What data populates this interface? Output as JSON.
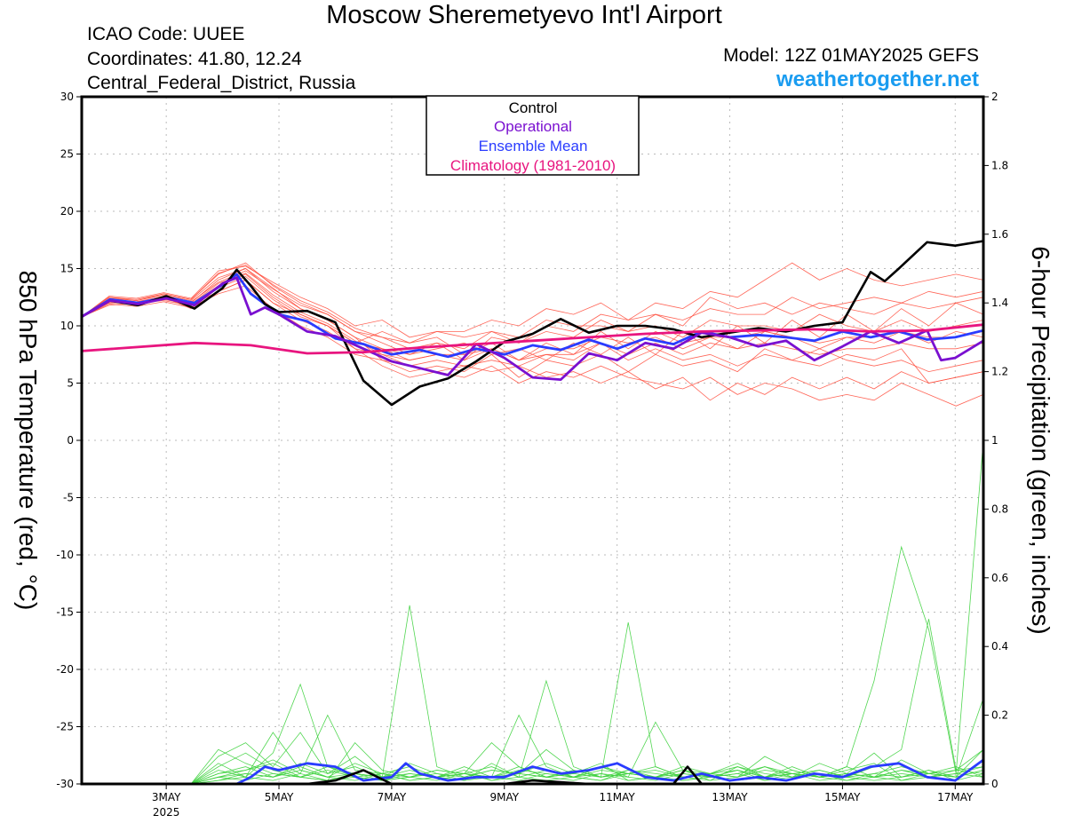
{
  "header": {
    "title": "Moscow Sheremetyevo Int'l Airport",
    "icao": "ICAO Code: UUEE",
    "coords": "Coordinates: 41.80, 12.24",
    "region": "Central_Federal_District, Russia",
    "model": "Model: 12Z 01MAY2025 GEFS",
    "site": "weathertogether.net"
  },
  "colors": {
    "control": "#000000",
    "operational": "#7a10d0",
    "mean": "#2a3cff",
    "climatology": "#e8157f",
    "members_temp": "#ff4a3a",
    "members_precip": "#3ed23e",
    "grid": "#bbbbbb"
  },
  "chart_data": {
    "type": "line",
    "x_unit": "days after 12Z 01MAY2025",
    "xlim": [
      0,
      16
    ],
    "x_ticks": [
      {
        "x": 1.5,
        "label": "3MAY",
        "sublabel": "2025"
      },
      {
        "x": 3.5,
        "label": "5MAY",
        "sublabel": ""
      },
      {
        "x": 5.5,
        "label": "7MAY",
        "sublabel": ""
      },
      {
        "x": 7.5,
        "label": "9MAY",
        "sublabel": ""
      },
      {
        "x": 9.5,
        "label": "11MAY",
        "sublabel": ""
      },
      {
        "x": 11.5,
        "label": "13MAY",
        "sublabel": ""
      },
      {
        "x": 13.5,
        "label": "15MAY",
        "sublabel": ""
      },
      {
        "x": 15.5,
        "label": "17MAY",
        "sublabel": ""
      }
    ],
    "y_left": {
      "label": "850 hPa Temperature (red, °C)",
      "ylim": [
        -30,
        30
      ],
      "ticks": [
        "30",
        "25",
        "20",
        "15",
        "10",
        "5",
        "0",
        "-5",
        "-10",
        "-15",
        "-20",
        "-25",
        "-30"
      ]
    },
    "y_right": {
      "label": "6-hour Precipitation (green, inches)",
      "ylim": [
        0,
        2
      ],
      "ticks": [
        "2",
        "1.8",
        "1.6",
        "1.4",
        "1.2",
        "1",
        "0.8",
        "0.6",
        "0.4",
        "0.2",
        "0"
      ]
    },
    "grid": true,
    "legend": {
      "position": "top-center",
      "entries": [
        "Control",
        "Operational",
        "Ensemble Mean",
        "Climatology (1981-2010)"
      ]
    },
    "series": [
      {
        "name": "Control",
        "axis": "left",
        "x": [
          0,
          0.5,
          1,
          1.5,
          2,
          2.5,
          2.75,
          3,
          3.25,
          3.5,
          4,
          4.5,
          5,
          5.5,
          6,
          6.5,
          7,
          7.5,
          8,
          8.5,
          9,
          9.5,
          10,
          10.5,
          11,
          11.5,
          12,
          12.5,
          13,
          13.5,
          14,
          14.25,
          14.5,
          15,
          15.5,
          16
        ],
        "y": [
          10.8,
          12.2,
          11.8,
          12.6,
          11.5,
          13.3,
          14.9,
          13.5,
          11.9,
          11.2,
          11.3,
          10.3,
          5.2,
          3.1,
          4.7,
          5.4,
          6.9,
          8.6,
          9.3,
          10.6,
          9.4,
          10.0,
          10.0,
          9.7,
          9.0,
          9.4,
          9.8,
          9.5,
          10.0,
          10.3,
          14.7,
          13.9,
          15.0,
          17.3,
          17.0,
          17.4
        ]
      },
      {
        "name": "Operational",
        "axis": "left",
        "x": [
          0,
          0.5,
          1,
          1.5,
          2,
          2.5,
          2.75,
          3,
          3.25,
          3.5,
          4,
          4.5,
          5,
          5.5,
          6,
          6.5,
          7,
          7.5,
          8,
          8.5,
          9,
          9.5,
          10,
          10.5,
          11,
          11.5,
          12,
          12.5,
          13,
          13.5,
          14,
          14.5,
          15,
          15.25,
          15.5,
          16
        ],
        "y": [
          10.8,
          12.2,
          11.9,
          12.4,
          11.8,
          13.7,
          14.2,
          11.0,
          11.6,
          11.0,
          9.5,
          9.1,
          8.0,
          6.9,
          6.3,
          5.7,
          8.4,
          7.2,
          5.5,
          5.3,
          7.6,
          7.0,
          8.5,
          8.0,
          9.4,
          9.0,
          8.2,
          8.7,
          7.0,
          8.2,
          9.5,
          8.5,
          9.6,
          7.0,
          7.2,
          8.7
        ]
      },
      {
        "name": "Ensemble Mean",
        "axis": "left",
        "x": [
          0,
          0.5,
          1,
          1.5,
          2,
          2.5,
          2.75,
          3,
          3.5,
          4,
          4.5,
          5,
          5.5,
          6,
          6.5,
          7,
          7.5,
          8,
          8.5,
          9,
          9.5,
          10,
          10.5,
          11,
          11.5,
          12,
          12.5,
          13,
          13.5,
          14,
          14.5,
          15,
          15.5,
          16
        ],
        "y": [
          10.8,
          12.3,
          12.0,
          12.5,
          12.0,
          13.6,
          14.5,
          12.8,
          11.0,
          10.4,
          8.9,
          8.4,
          7.5,
          7.9,
          7.3,
          8.0,
          7.5,
          8.3,
          7.9,
          8.8,
          8.0,
          8.9,
          8.4,
          9.5,
          9.0,
          9.2,
          9.0,
          8.7,
          9.5,
          9.0,
          9.5,
          8.8,
          9.0,
          9.6
        ]
      },
      {
        "name": "Climatology (1981-2010)",
        "axis": "left",
        "x": [
          0,
          2,
          3,
          4,
          5,
          6,
          7,
          8,
          9,
          10,
          11,
          12,
          13,
          14,
          15,
          16
        ],
        "y": [
          7.8,
          8.5,
          8.3,
          7.6,
          7.7,
          8.1,
          8.4,
          8.7,
          9.0,
          9.3,
          9.5,
          9.6,
          9.7,
          9.5,
          9.6,
          10.1
        ]
      },
      {
        "name": "Ensemble Mean",
        "axis": "right",
        "x": [
          0,
          1,
          2,
          2.75,
          3,
          3.25,
          3.5,
          4,
          4.5,
          5,
          5.5,
          5.75,
          6,
          6.5,
          7,
          7.5,
          8,
          8.5,
          9,
          9.5,
          10,
          10.5,
          11,
          11.5,
          12,
          12.5,
          13,
          13.5,
          14,
          14.5,
          15,
          15.5,
          16
        ],
        "y": [
          0,
          0,
          0,
          0,
          0.02,
          0.05,
          0.04,
          0.06,
          0.05,
          0.01,
          0.02,
          0.06,
          0.03,
          0.01,
          0.02,
          0.02,
          0.05,
          0.03,
          0.04,
          0.06,
          0.02,
          0.01,
          0.03,
          0.01,
          0.02,
          0.01,
          0.03,
          0.02,
          0.05,
          0.06,
          0.02,
          0.01,
          0.07
        ]
      },
      {
        "name": "Control",
        "axis": "right",
        "x": [
          0,
          1,
          2,
          3,
          4,
          4.5,
          5,
          5.5,
          6,
          6.5,
          7,
          7.5,
          8,
          9,
          10,
          10.5,
          10.75,
          11,
          12,
          13,
          14,
          15,
          16
        ],
        "y": [
          0,
          0,
          0,
          0,
          0,
          0.01,
          0.04,
          0,
          0,
          0,
          0,
          0,
          0.01,
          0,
          0,
          0,
          0.05,
          0,
          0,
          0,
          0,
          0,
          0
        ]
      }
    ],
    "members_temperature": [
      [
        10.8,
        12.0,
        12.0,
        12.5,
        11.5,
        13.0,
        14.0,
        12.0,
        11.0,
        10.0,
        8.5,
        8.0,
        7.0,
        7.5,
        7.5,
        8.0,
        7.0,
        8.0,
        8.0,
        9.0,
        8.5,
        9.0,
        8.0,
        9.0,
        9.0,
        9.5,
        9.0,
        8.5,
        9.0,
        9.0,
        9.5,
        9.0,
        9.0,
        9.5
      ],
      [
        10.8,
        12.5,
        12.2,
        12.8,
        12.3,
        14.5,
        15.5,
        13.5,
        12.0,
        11.0,
        9.5,
        9.0,
        8.0,
        8.5,
        8.0,
        9.5,
        8.5,
        9.5,
        9.0,
        10.5,
        9.5,
        10.0,
        9.0,
        10.5,
        10.0,
        10.0,
        9.5,
        11.0,
        10.0,
        9.5,
        10.5,
        9.5,
        10.0,
        10.5
      ],
      [
        10.8,
        11.8,
        12.0,
        12.2,
        11.8,
        13.0,
        14.0,
        12.0,
        10.5,
        9.5,
        8.0,
        7.5,
        6.5,
        7.0,
        6.5,
        7.0,
        6.5,
        7.5,
        7.0,
        8.5,
        7.5,
        8.5,
        7.5,
        8.5,
        8.0,
        8.5,
        8.0,
        7.5,
        8.0,
        8.0,
        8.5,
        8.0,
        8.0,
        8.5
      ],
      [
        10.8,
        12.2,
        11.8,
        12.5,
        12.0,
        14.0,
        15.0,
        13.0,
        11.5,
        10.5,
        9.0,
        7.0,
        6.0,
        6.5,
        6.0,
        7.5,
        5.5,
        7.0,
        6.5,
        7.5,
        6.0,
        7.5,
        6.5,
        7.0,
        6.0,
        8.0,
        7.0,
        6.5,
        7.5,
        7.0,
        8.0,
        5.0,
        5.5,
        6.0
      ],
      [
        10.8,
        12.6,
        12.4,
        12.9,
        12.4,
        14.8,
        15.2,
        13.8,
        12.5,
        11.5,
        10.0,
        10.5,
        9.0,
        9.5,
        9.5,
        10.5,
        10.0,
        11.5,
        11.0,
        12.0,
        10.5,
        11.0,
        10.0,
        12.5,
        11.5,
        12.0,
        11.0,
        12.0,
        11.5,
        11.0,
        12.0,
        11.5,
        12.0,
        12.5
      ],
      [
        10.8,
        12.1,
        11.9,
        12.3,
        11.9,
        13.5,
        14.5,
        12.5,
        11.0,
        10.0,
        8.0,
        6.5,
        5.5,
        6.0,
        5.5,
        6.5,
        5.0,
        6.0,
        5.5,
        6.5,
        5.5,
        5.0,
        4.5,
        5.5,
        4.0,
        5.0,
        4.5,
        3.5,
        4.0,
        3.5,
        5.0,
        4.0,
        3.0,
        4.0
      ],
      [
        10.8,
        12.3,
        12.1,
        12.6,
        12.1,
        13.8,
        14.8,
        13.2,
        11.8,
        11.0,
        9.5,
        8.5,
        7.5,
        8.5,
        7.0,
        9.0,
        8.5,
        10.0,
        9.5,
        11.0,
        10.5,
        12.0,
        11.5,
        13.0,
        12.5,
        14.0,
        15.5,
        14.0,
        15.0,
        14.0,
        13.5,
        14.0,
        14.5,
        14.0
      ],
      [
        10.8,
        11.9,
        11.7,
        12.1,
        11.6,
        12.8,
        13.5,
        11.5,
        10.0,
        9.0,
        7.5,
        7.0,
        6.5,
        6.0,
        6.5,
        6.0,
        6.5,
        5.5,
        6.0,
        5.0,
        6.0,
        4.5,
        5.5,
        3.5,
        5.0,
        4.0,
        5.5,
        4.5,
        5.5,
        4.5,
        6.0,
        5.0,
        5.5,
        6.0
      ],
      [
        10.8,
        12.4,
        12.2,
        12.7,
        12.2,
        14.2,
        15.0,
        13.3,
        11.5,
        10.5,
        9.0,
        8.0,
        7.5,
        8.0,
        8.5,
        7.5,
        8.0,
        7.0,
        8.5,
        7.5,
        9.0,
        7.5,
        9.5,
        8.0,
        10.0,
        8.5,
        10.5,
        9.0,
        11.0,
        9.5,
        11.5,
        10.0,
        12.0,
        11.0
      ],
      [
        10.8,
        12.0,
        12.1,
        12.4,
        11.7,
        13.3,
        14.3,
        12.3,
        10.8,
        10.0,
        8.5,
        9.5,
        8.5,
        9.0,
        7.5,
        8.5,
        7.0,
        8.5,
        7.5,
        9.5,
        8.0,
        9.5,
        8.5,
        9.0,
        8.0,
        9.5,
        9.0,
        8.0,
        9.0,
        8.5,
        9.5,
        8.5,
        9.5,
        9.0
      ],
      [
        10.8,
        12.5,
        12.3,
        12.8,
        12.3,
        14.6,
        15.3,
        13.6,
        12.2,
        11.2,
        9.8,
        9.0,
        8.5,
        9.5,
        9.0,
        9.5,
        9.0,
        10.5,
        10.0,
        10.0,
        9.5,
        11.0,
        10.5,
        11.5,
        11.0,
        11.0,
        12.5,
        11.5,
        12.0,
        12.5,
        12.0,
        13.0,
        12.5,
        13.0
      ],
      [
        10.8,
        12.2,
        11.9,
        12.5,
        11.9,
        13.7,
        14.6,
        12.7,
        11.2,
        10.2,
        8.7,
        7.5,
        7.0,
        7.5,
        7.0,
        8.0,
        7.0,
        7.5,
        7.5,
        8.5,
        7.0,
        8.0,
        7.0,
        7.5,
        6.5,
        7.5,
        7.0,
        8.0,
        7.0,
        6.5,
        7.0,
        6.0,
        6.5,
        7.0
      ]
    ],
    "members_precipitation": [
      [
        0,
        0,
        0,
        0,
        0,
        0.02,
        0.04,
        0.06,
        0.02,
        0.01,
        0.03,
        0.01,
        0.02,
        0.04,
        0.03,
        0.02,
        0.05,
        0.02,
        0.03,
        0.06,
        0.01,
        0.02,
        0.04,
        0.01,
        0.02,
        0.05,
        0.03,
        0.02,
        0.04,
        0.06,
        0.01,
        0.02,
        0.03,
        0.02
      ],
      [
        0,
        0,
        0,
        0,
        0,
        0.08,
        0.12,
        0.05,
        0.15,
        0.03,
        0.08,
        0.02,
        0.52,
        0.05,
        0.02,
        0.04,
        0.03,
        0.1,
        0.04,
        0.02,
        0.47,
        0.05,
        0.02,
        0.03,
        0.04,
        0.02,
        0.05,
        0.02,
        0.03,
        0.09,
        0.02,
        0.03,
        0.02,
        0.04
      ],
      [
        0,
        0,
        0,
        0,
        0,
        0.04,
        0.02,
        0.09,
        0.29,
        0.05,
        0.02,
        0.01,
        0.03,
        0.02,
        0.01,
        0.06,
        0.02,
        0.3,
        0.05,
        0.02,
        0.03,
        0.05,
        0.02,
        0.03,
        0.06,
        0.02,
        0.04,
        0.02,
        0.05,
        0.3,
        0.69,
        0.45,
        0.03,
        0.05
      ],
      [
        0,
        0,
        0,
        0,
        0,
        0.1,
        0.06,
        0.03,
        0.02,
        0.01,
        0.12,
        0.04,
        0.02,
        0.03,
        0.01,
        0.02,
        0.2,
        0.05,
        0.02,
        0.01,
        0.04,
        0.03,
        0.02,
        0.01,
        0.05,
        0.03,
        0.02,
        0.04,
        0.02,
        0.05,
        0.1,
        0.48,
        0.04,
        0.1
      ],
      [
        0,
        0,
        0,
        0,
        0,
        0.01,
        0.03,
        0.02,
        0.04,
        0.02,
        0.01,
        0.03,
        0.01,
        0.02,
        0.04,
        0.01,
        0.03,
        0.02,
        0.01,
        0.03,
        0.02,
        0.01,
        0.03,
        0.02,
        0.04,
        0.01,
        0.03,
        0.02,
        0.01,
        0.03,
        0.02,
        0.04,
        0.01,
        0.03
      ],
      [
        0,
        0,
        0,
        0,
        0,
        0.03,
        0.05,
        0.02,
        0.06,
        0.03,
        0.05,
        0.02,
        0.04,
        0.02,
        0.03,
        0.05,
        0.02,
        0.04,
        0.02,
        0.05,
        0.03,
        0.04,
        0.02,
        0.03,
        0.05,
        0.02,
        0.03,
        0.04,
        0.02,
        0.03,
        0.05,
        0.03,
        0.04,
        0.05
      ],
      [
        0,
        0,
        0,
        0,
        0,
        0.06,
        0.02,
        0.15,
        0.04,
        0.02,
        0.06,
        0.03,
        0.05,
        0.02,
        0.03,
        0.12,
        0.05,
        0.02,
        0.03,
        0.05,
        0.02,
        0.18,
        0.04,
        0.02,
        0.03,
        0.05,
        0.02,
        0.06,
        0.03,
        0.02,
        0.04,
        0.03,
        0.05,
        0.02
      ],
      [
        0,
        0,
        0,
        0,
        0,
        0.02,
        0.01,
        0.03,
        0.02,
        0.04,
        0.02,
        0.03,
        0.01,
        0.02,
        0.03,
        0.02,
        0.01,
        0.03,
        0.02,
        0.01,
        0.03,
        0.02,
        0.01,
        0.02,
        0.03,
        0.01,
        0.02,
        0.03,
        0.01,
        0.02,
        0.01,
        0.03,
        0.02,
        0.1
      ],
      [
        0,
        0,
        0,
        0,
        0,
        0.05,
        0.09,
        0.04,
        0.02,
        0.05,
        0.03,
        0.02,
        0.06,
        0.03,
        0.02,
        0.04,
        0.03,
        0.06,
        0.03,
        0.02,
        0.04,
        0.02,
        0.05,
        0.03,
        0.02,
        0.04,
        0.03,
        0.02,
        0.05,
        0.02,
        0.03,
        0.02,
        0.04,
        0.03
      ],
      [
        0,
        0,
        0,
        0,
        0,
        0.01,
        0.02,
        0.01,
        0.03,
        0.01,
        0.02,
        0.01,
        0.02,
        0.01,
        0.03,
        0.01,
        0.02,
        0.01,
        0.02,
        0.03,
        0.01,
        0.02,
        0.01,
        0.02,
        0.01,
        0.02,
        0.03,
        0.01,
        0.02,
        0.01,
        0.02,
        0.04,
        0.02,
        0.25
      ],
      [
        0,
        0,
        0,
        0,
        0,
        0.03,
        0.04,
        0.07,
        0.03,
        0.2,
        0.04,
        0.03,
        0.02,
        0.04,
        0.03,
        0.02,
        0.04,
        0.03,
        0.02,
        0.04,
        0.03,
        0.02,
        0.04,
        0.03,
        0.02,
        0.08,
        0.04,
        0.02,
        0.03,
        0.02,
        0.07,
        0.03,
        0.02,
        0.04
      ],
      [
        0,
        0,
        0,
        0,
        0,
        0.02,
        0.03,
        0.02,
        0.05,
        0.02,
        0.03,
        0.02,
        0.03,
        0.02,
        0.05,
        0.02,
        0.03,
        0.02,
        0.04,
        0.02,
        0.03,
        0.02,
        0.03,
        0.02,
        0.04,
        0.02,
        0.03,
        0.02,
        0.03,
        0.02,
        0.04,
        0.02,
        0.03,
        1.0
      ]
    ]
  }
}
